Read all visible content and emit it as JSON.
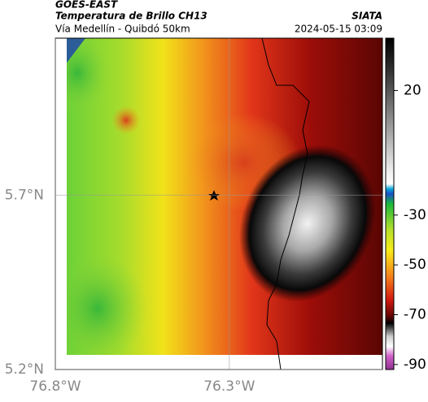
{
  "header": {
    "source": "GOES-EAST",
    "title": "Temperatura de Brillo CH13",
    "subtitle": "Vía Medellín - Quibdó 50km",
    "agency": "SIATA",
    "timestamp": "2024-05-15 03:09"
  },
  "map": {
    "xlim": [
      -76.8,
      -75.86
    ],
    "ylim": [
      5.2,
      6.15
    ],
    "xticks": [
      {
        "value": -76.8,
        "label": "76.8°W"
      },
      {
        "value": -76.3,
        "label": "76.3°W"
      }
    ],
    "yticks": [
      {
        "value": 5.7,
        "label": "5.7°N"
      },
      {
        "value": 5.2,
        "label": "5.2°N"
      }
    ]
  },
  "colorbar": {
    "lim": [
      -92,
      41
    ],
    "ticks": [
      20,
      -30,
      -50,
      -70,
      -90
    ]
  }
}
